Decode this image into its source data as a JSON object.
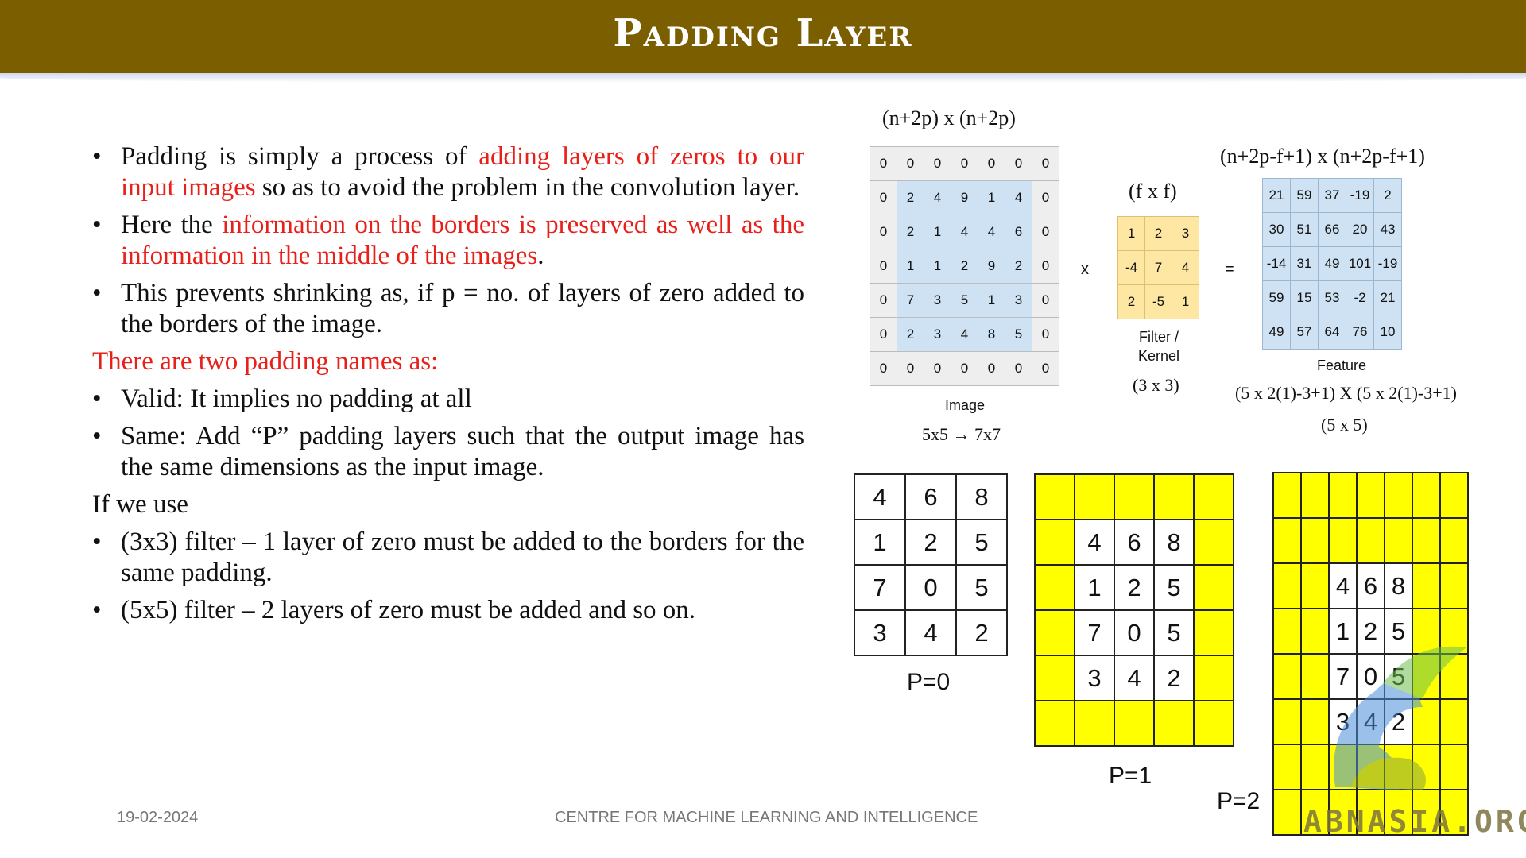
{
  "title": "Padding Layer",
  "bullets_top": [
    [
      {
        "t": "Padding is simply a process of ",
        "c": ""
      },
      {
        "t": "adding layers of zeros to our input images",
        "c": "red"
      },
      {
        "t": " so as to avoid the problem in the convolution layer.",
        "c": ""
      }
    ],
    [
      {
        "t": "Here the ",
        "c": ""
      },
      {
        "t": "information on the borders is preserved as well as the information in the middle of the images",
        "c": "red"
      },
      {
        "t": ".",
        "c": ""
      }
    ],
    [
      {
        "t": "This prevents shrinking as, if p = no. of layers of zero added to the borders of the image.",
        "c": ""
      }
    ]
  ],
  "two_names_heading": "There are two padding names as:",
  "bullets_names": [
    "Valid: It implies no padding at all",
    "Same: Add “P” padding layers such that the output image has the same dimensions as the input image."
  ],
  "if_we_use": "If we use",
  "bullets_filters": [
    "(3x3) filter – 1 layer of zero must be added to the borders for the same padding.",
    "(5x5) filter – 2 layers of zero must be added and so on."
  ],
  "diagram": {
    "image_dims": "(n+2p) x (n+2p)",
    "image_matrix": [
      [
        "0",
        "0",
        "0",
        "0",
        "0",
        "0",
        "0"
      ],
      [
        "0",
        "2",
        "4",
        "9",
        "1",
        "4",
        "0"
      ],
      [
        "0",
        "2",
        "1",
        "4",
        "4",
        "6",
        "0"
      ],
      [
        "0",
        "1",
        "1",
        "2",
        "9",
        "2",
        "0"
      ],
      [
        "0",
        "7",
        "3",
        "5",
        "1",
        "3",
        "0"
      ],
      [
        "0",
        "2",
        "3",
        "4",
        "8",
        "5",
        "0"
      ],
      [
        "0",
        "0",
        "0",
        "0",
        "0",
        "0",
        "0"
      ]
    ],
    "image_label": "Image",
    "image_size": "5x5 → 7x7",
    "times": "x",
    "filter_dims": "(f x f)",
    "filter_matrix": [
      [
        "1",
        "2",
        "3"
      ],
      [
        "-4",
        "7",
        "4"
      ],
      [
        "2",
        "-5",
        "1"
      ]
    ],
    "filter_label_1": "Filter /",
    "filter_label_2": "Kernel",
    "filter_size": "(3 x 3)",
    "equals": "=",
    "feature_dims": "(n+2p-f+1) x (n+2p-f+1)",
    "feature_matrix": [
      [
        "21",
        "59",
        "37",
        "-19",
        "2"
      ],
      [
        "30",
        "51",
        "66",
        "20",
        "43"
      ],
      [
        "-14",
        "31",
        "49",
        "101",
        "-19"
      ],
      [
        "59",
        "15",
        "53",
        "-2",
        "21"
      ],
      [
        "49",
        "57",
        "64",
        "76",
        "10"
      ]
    ],
    "feature_label": "Feature",
    "feature_formula": "(5 x 2(1)-3+1) X (5 x 2(1)-3+1)",
    "feature_size": "(5 x 5)"
  },
  "padding_examples": {
    "values": [
      [
        "4",
        "6",
        "8"
      ],
      [
        "1",
        "2",
        "5"
      ],
      [
        "7",
        "0",
        "5"
      ],
      [
        "3",
        "4",
        "2"
      ]
    ],
    "p0_label": "P=0",
    "p1_label": "P=1",
    "p2_label": "P=2"
  },
  "footer": {
    "date": "19-02-2024",
    "center": "CENTRE FOR MACHINE LEARNING AND INTELLIGENCE"
  },
  "watermark": "ABNASIA.ORG",
  "colors": {
    "header": "#7a5e00",
    "highlight": "#e8201a",
    "padding": "#ffff00"
  }
}
